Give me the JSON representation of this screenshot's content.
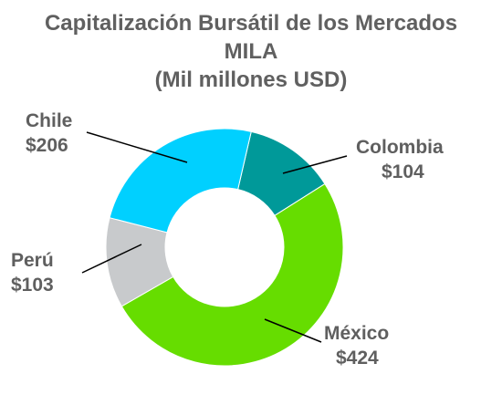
{
  "chart_data": {
    "type": "pie",
    "variant": "donut",
    "title_lines": [
      "Capitalización Bursátil de los Mercados",
      "MILA",
      "(Mil millones USD)"
    ],
    "slices": [
      {
        "name": "Colombia",
        "label": "$104",
        "value": 104,
        "color": "#009999"
      },
      {
        "name": "México",
        "label": "$424",
        "value": 424,
        "color": "#66dd00"
      },
      {
        "name": "Perú",
        "label": "$103",
        "value": 103,
        "color": "#c8cacc"
      },
      {
        "name": "Chile",
        "label": "$206",
        "value": 206,
        "color": "#00d0ff"
      }
    ],
    "start_angle_deg": 13,
    "legend": "none"
  }
}
